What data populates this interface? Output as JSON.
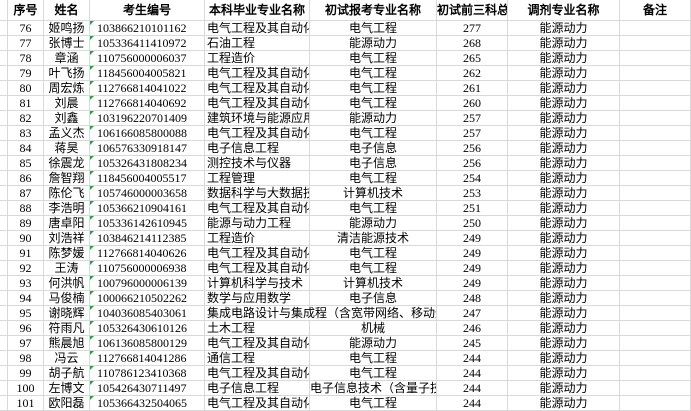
{
  "app": "spreadsheet-grid",
  "colors": {
    "background": "#ffffff",
    "gridline": "#d9d9d9",
    "text": "#000000",
    "text_indicator_green": "#2f9e44"
  },
  "table": {
    "columns": [
      {
        "key": "seq",
        "label": "序号"
      },
      {
        "key": "name",
        "label": "姓名"
      },
      {
        "key": "candidate_no",
        "label": "考生编号"
      },
      {
        "key": "undergrad_major",
        "label": "本科毕业专业名称"
      },
      {
        "key": "applied_major",
        "label": "初试报考专业名称"
      },
      {
        "key": "score",
        "label": "初试前三科总分"
      },
      {
        "key": "transfer_major",
        "label": "调剂专业名称"
      },
      {
        "key": "remark",
        "label": "备注"
      }
    ],
    "rows": [
      {
        "seq": "76",
        "name": "姬鸣扬",
        "candidate_no": "103866210101162",
        "undergrad_major": "电气工程及其自动化",
        "applied_major": "电气工程",
        "score": "277",
        "transfer_major": "能源动力",
        "remark": "",
        "indicator": true
      },
      {
        "seq": "77",
        "name": "张博士",
        "candidate_no": "105336411410972",
        "undergrad_major": "石油工程",
        "applied_major": "能源动力",
        "score": "268",
        "transfer_major": "能源动力",
        "remark": "",
        "indicator": true
      },
      {
        "seq": "78",
        "name": "章涵",
        "candidate_no": "110756000006037",
        "undergrad_major": "工程造价",
        "applied_major": "电气工程",
        "score": "265",
        "transfer_major": "能源动力",
        "remark": "",
        "indicator": true
      },
      {
        "seq": "79",
        "name": "叶飞扬",
        "candidate_no": "118456004005821",
        "undergrad_major": "电气工程及其自动化",
        "applied_major": "电气工程",
        "score": "262",
        "transfer_major": "能源动力",
        "remark": "",
        "indicator": true
      },
      {
        "seq": "80",
        "name": "周宏炼",
        "candidate_no": "112766814041022",
        "undergrad_major": "电气工程及其自动化",
        "applied_major": "电气工程",
        "score": "261",
        "transfer_major": "能源动力",
        "remark": "",
        "indicator": true
      },
      {
        "seq": "81",
        "name": "刘晨",
        "candidate_no": "112766814040692",
        "undergrad_major": "电气工程及其自动化",
        "applied_major": "电气工程",
        "score": "260",
        "transfer_major": "能源动力",
        "remark": "",
        "indicator": true
      },
      {
        "seq": "82",
        "name": "刘鑫",
        "candidate_no": "103196220701409",
        "undergrad_major": "建筑环境与能源应用工程",
        "applied_major": "能源动力",
        "score": "257",
        "transfer_major": "能源动力",
        "remark": "",
        "indicator": true
      },
      {
        "seq": "83",
        "name": "孟义杰",
        "candidate_no": "106166085800088",
        "undergrad_major": "电气工程及其自动化",
        "applied_major": "电气工程",
        "score": "257",
        "transfer_major": "能源动力",
        "remark": "",
        "indicator": true
      },
      {
        "seq": "84",
        "name": "蒋昊",
        "candidate_no": "106576330918147",
        "undergrad_major": "电子信息工程",
        "applied_major": "电子信息",
        "score": "256",
        "transfer_major": "能源动力",
        "remark": "",
        "indicator": true
      },
      {
        "seq": "85",
        "name": "徐震龙",
        "candidate_no": "105326431808234",
        "undergrad_major": "测控技术与仪器",
        "applied_major": "电子信息",
        "score": "256",
        "transfer_major": "能源动力",
        "remark": "",
        "indicator": true
      },
      {
        "seq": "86",
        "name": "詹智翔",
        "candidate_no": "118456004005517",
        "undergrad_major": "工程管理",
        "applied_major": "电气工程",
        "score": "254",
        "transfer_major": "能源动力",
        "remark": "",
        "indicator": true
      },
      {
        "seq": "87",
        "name": "陈伦飞",
        "candidate_no": "105746000003658",
        "undergrad_major": "数据科学与大数据技术",
        "applied_major": "计算机技术",
        "score": "253",
        "transfer_major": "能源动力",
        "remark": "",
        "indicator": true
      },
      {
        "seq": "88",
        "name": "李浩明",
        "candidate_no": "105366210904161",
        "undergrad_major": "电气工程及其自动化",
        "applied_major": "电气工程",
        "score": "251",
        "transfer_major": "能源动力",
        "remark": "",
        "indicator": true
      },
      {
        "seq": "89",
        "name": "唐卓阳",
        "candidate_no": "105336142610945",
        "undergrad_major": "能源与动力工程",
        "applied_major": "能源动力",
        "score": "250",
        "transfer_major": "能源动力",
        "remark": "",
        "indicator": true
      },
      {
        "seq": "90",
        "name": "刘浩祥",
        "candidate_no": "103846214112385",
        "undergrad_major": "工程造价",
        "applied_major": "清洁能源技术",
        "score": "249",
        "transfer_major": "能源动力",
        "remark": "",
        "indicator": true
      },
      {
        "seq": "91",
        "name": "陈梦媛",
        "candidate_no": "112766814040626",
        "undergrad_major": "电气工程及其自动化",
        "applied_major": "电气工程",
        "score": "249",
        "transfer_major": "能源动力",
        "remark": "",
        "indicator": true
      },
      {
        "seq": "92",
        "name": "王涛",
        "candidate_no": "110756000006938",
        "undergrad_major": "电气工程及其自动化",
        "applied_major": "电气工程",
        "score": "249",
        "transfer_major": "能源动力",
        "remark": "",
        "indicator": true
      },
      {
        "seq": "93",
        "name": "何洪帆",
        "candidate_no": "100796000006139",
        "undergrad_major": "计算机科学与技术",
        "applied_major": "计算机技术",
        "score": "249",
        "transfer_major": "能源动力",
        "remark": "",
        "indicator": true
      },
      {
        "seq": "94",
        "name": "马俊楠",
        "candidate_no": "100066210502262",
        "undergrad_major": "数学与应用数学",
        "applied_major": "电子信息",
        "score": "248",
        "transfer_major": "能源动力",
        "remark": "",
        "indicator": true
      },
      {
        "seq": "95",
        "name": "谢晓辉",
        "candidate_no": "104036085403061",
        "undergrad_major": "集成电路设计与集成程（含宽带网络、移动通",
        "applied_major": "",
        "score": "247",
        "transfer_major": "能源动力",
        "remark": "",
        "indicator": true,
        "undergrad_span2": true
      },
      {
        "seq": "96",
        "name": "符雨凡",
        "candidate_no": "105326430610126",
        "undergrad_major": "土木工程",
        "applied_major": "机械",
        "score": "246",
        "transfer_major": "能源动力",
        "remark": "",
        "indicator": true
      },
      {
        "seq": "97",
        "name": "熊晨旭",
        "candidate_no": "106136085800129",
        "undergrad_major": "电气工程及其自动化",
        "applied_major": "能源动力",
        "score": "245",
        "transfer_major": "能源动力",
        "remark": "",
        "indicator": true
      },
      {
        "seq": "98",
        "name": "冯云",
        "candidate_no": "112766814041286",
        "undergrad_major": "通信工程",
        "applied_major": "电气工程",
        "score": "244",
        "transfer_major": "能源动力",
        "remark": "",
        "indicator": true
      },
      {
        "seq": "99",
        "name": "胡子航",
        "candidate_no": "110786123410368",
        "undergrad_major": "电气工程及其自动化",
        "applied_major": "电气工程",
        "score": "244",
        "transfer_major": "能源动力",
        "remark": "",
        "indicator": true
      },
      {
        "seq": "100",
        "name": "左博文",
        "candidate_no": "105426430711497",
        "undergrad_major": "电子信息工程",
        "applied_major": "电子信息技术（含量子技术）",
        "score": "244",
        "transfer_major": "能源动力",
        "remark": "",
        "indicator": true
      },
      {
        "seq": "101",
        "name": "欧阳磊",
        "candidate_no": "105366432504065",
        "undergrad_major": "电气工程及其自动化",
        "applied_major": "电气工程",
        "score": "244",
        "transfer_major": "能源动力",
        "remark": "",
        "indicator": true
      }
    ]
  }
}
